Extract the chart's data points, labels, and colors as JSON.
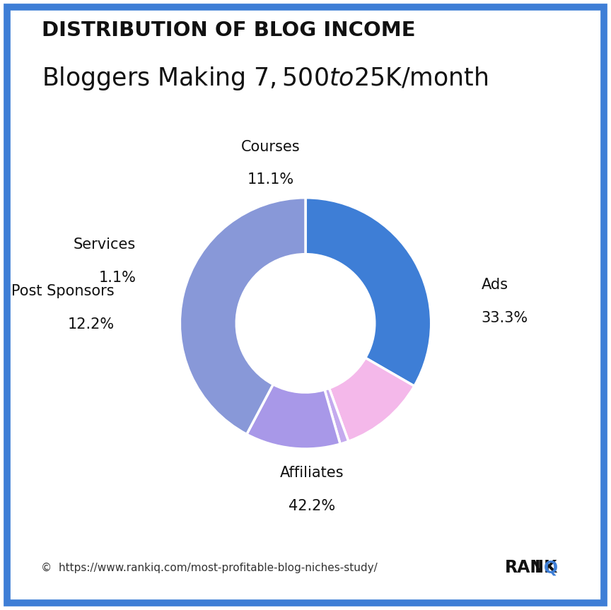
{
  "title_upper": "DISTRIBUTION OF BLOG INCOME",
  "title_lower": "Bloggers Making $7,500 to $25K/month",
  "labels": [
    "Ads",
    "Affiliates",
    "Post Sponsors",
    "Services",
    "Courses"
  ],
  "values": [
    33.3,
    42.2,
    12.2,
    1.1,
    11.1
  ],
  "colors": {
    "Ads": "#3E7ED6",
    "Courses": "#F4B8EA",
    "Services": "#C4AAEE",
    "Post Sponsors": "#A898E8",
    "Affiliates": "#8898D8"
  },
  "wedge_order": [
    "Ads",
    "Courses",
    "Services",
    "Post Sponsors",
    "Affiliates"
  ],
  "footer_text": "©  https://www.rankiq.com/most-profitable-blog-niches-study/",
  "background_color": "#FFFFFF",
  "border_color": "#3E7ED6",
  "label_fontsize": 15,
  "pct_fontsize": 15,
  "title_upper_fontsize": 21,
  "title_lower_fontsize": 25,
  "wedge_linewidth": 2.5,
  "donut_width": 0.45
}
